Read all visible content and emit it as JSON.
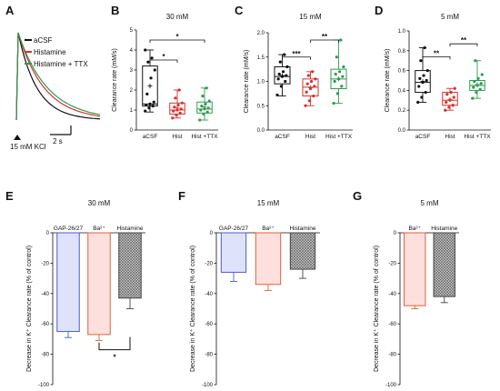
{
  "chart_data": [
    {
      "panel": "A",
      "type": "line",
      "legend": [
        {
          "name": "aCSF",
          "color": "#111111"
        },
        {
          "name": "Histamine",
          "color": "#d9302c"
        },
        {
          "name": "Histamine + TTX",
          "color": "#2e9b4e"
        }
      ],
      "stimulus_label": "15 mM KCl",
      "scalebar_label": "2 s",
      "series": [
        {
          "name": "aCSF",
          "color": "#111111",
          "tau": 1.15
        },
        {
          "name": "Histamine",
          "color": "#d9302c",
          "tau": 1.6
        },
        {
          "name": "Histamine + TTX",
          "color": "#2e9b4e",
          "tau": 1.8
        }
      ]
    },
    {
      "panel": "B",
      "type": "box",
      "title": "30 mM",
      "ylabel": "Clearance rate (mM/s)",
      "ylim": [
        0,
        5
      ],
      "yticks": [
        "0",
        "1",
        "2",
        "3",
        "4",
        "5"
      ],
      "categories": [
        "aCSF",
        "Hist",
        "Hist +TTX"
      ],
      "colors": [
        "#111111",
        "#d9302c",
        "#2e9b4e"
      ],
      "boxes": [
        {
          "min": 0.9,
          "q1": 1.2,
          "median": 1.3,
          "q3": 3.2,
          "max": 4.0,
          "mean": 2.2,
          "points": [
            0.95,
            1.1,
            1.2,
            1.25,
            1.3,
            1.4,
            1.8,
            2.6,
            3.0,
            3.4,
            3.6,
            4.0
          ]
        },
        {
          "min": 0.6,
          "q1": 0.8,
          "median": 1.0,
          "q3": 1.35,
          "max": 2.0,
          "mean": 1.1,
          "points": [
            0.6,
            0.75,
            0.85,
            0.95,
            1.0,
            1.05,
            1.15,
            1.25,
            1.35,
            1.6,
            2.0
          ]
        },
        {
          "min": 0.5,
          "q1": 0.85,
          "median": 1.05,
          "q3": 1.4,
          "max": 2.1,
          "mean": 1.15,
          "points": [
            0.5,
            0.8,
            0.9,
            1.0,
            1.05,
            1.1,
            1.2,
            1.3,
            1.45,
            1.7,
            2.1
          ]
        }
      ],
      "significance": [
        {
          "from": 0,
          "to": 1,
          "label": "*",
          "y": 3.5
        },
        {
          "from": 0,
          "to": 2,
          "label": "*",
          "y": 4.5
        }
      ]
    },
    {
      "panel": "C",
      "type": "box",
      "title": "15 mM",
      "ylabel": "Clearance rate (mM/s)",
      "ylim": [
        0,
        2.0
      ],
      "yticks": [
        "0.0",
        "0.5",
        "1.0",
        "1.5",
        "2.0"
      ],
      "categories": [
        "aCSF",
        "Hist",
        "Hist +TTX"
      ],
      "colors": [
        "#111111",
        "#d9302c",
        "#2e9b4e"
      ],
      "boxes": [
        {
          "min": 0.7,
          "q1": 0.95,
          "median": 1.1,
          "q3": 1.3,
          "max": 1.55,
          "mean": 1.12,
          "points": [
            0.72,
            0.9,
            1.0,
            1.05,
            1.1,
            1.12,
            1.15,
            1.2,
            1.3,
            1.4,
            1.55
          ]
        },
        {
          "min": 0.5,
          "q1": 0.7,
          "median": 0.88,
          "q3": 1.05,
          "max": 1.2,
          "mean": 0.87,
          "points": [
            0.5,
            0.6,
            0.7,
            0.78,
            0.85,
            0.9,
            0.95,
            1.0,
            1.05,
            1.12,
            1.2
          ]
        },
        {
          "min": 0.55,
          "q1": 0.85,
          "median": 1.05,
          "q3": 1.25,
          "max": 1.85,
          "mean": 1.05,
          "points": [
            0.55,
            0.75,
            0.9,
            1.0,
            1.05,
            1.1,
            1.15,
            1.2,
            1.3,
            1.5,
            1.85
          ]
        }
      ],
      "significance": [
        {
          "from": 0,
          "to": 1,
          "label": "***",
          "y": 1.5
        },
        {
          "from": 1,
          "to": 2,
          "label": "**",
          "y": 1.85
        }
      ]
    },
    {
      "panel": "D",
      "type": "box",
      "title": "5 mM",
      "ylabel": "Clearance rate (mM/s)",
      "ylim": [
        0,
        1.0
      ],
      "yticks": [
        "0.0",
        "0.2",
        "0.4",
        "0.6",
        "0.8",
        "1.0"
      ],
      "categories": [
        "aCSF",
        "Hist",
        "Hist +TTX"
      ],
      "colors": [
        "#111111",
        "#d9302c",
        "#2e9b4e"
      ],
      "boxes": [
        {
          "min": 0.28,
          "q1": 0.38,
          "median": 0.48,
          "q3": 0.6,
          "max": 0.83,
          "mean": 0.49,
          "points": [
            0.28,
            0.33,
            0.38,
            0.44,
            0.48,
            0.5,
            0.52,
            0.55,
            0.6,
            0.7,
            0.83
          ]
        },
        {
          "min": 0.2,
          "q1": 0.25,
          "median": 0.3,
          "q3": 0.38,
          "max": 0.42,
          "mean": 0.31,
          "points": [
            0.2,
            0.23,
            0.25,
            0.28,
            0.3,
            0.33,
            0.36,
            0.38,
            0.42
          ]
        },
        {
          "min": 0.32,
          "q1": 0.4,
          "median": 0.45,
          "q3": 0.5,
          "max": 0.7,
          "mean": 0.46,
          "points": [
            0.32,
            0.38,
            0.41,
            0.43,
            0.45,
            0.47,
            0.49,
            0.52,
            0.56,
            0.7
          ]
        }
      ],
      "significance": [
        {
          "from": 0,
          "to": 1,
          "label": "**",
          "y": 0.74
        },
        {
          "from": 1,
          "to": 2,
          "label": "**",
          "y": 0.87
        }
      ]
    },
    {
      "panel": "E",
      "type": "bar",
      "title": "30 mM",
      "ylabel": "Decrease in K⁺ Clearance rate (% of control)",
      "ylim": [
        -100,
        0
      ],
      "yticks": [
        "0",
        "-20",
        "-40",
        "-60",
        "-80",
        "-100"
      ],
      "categories": [
        "GAP-26/27",
        "Ba²⁺",
        "Histamine"
      ],
      "values": [
        -65,
        -67,
        -43
      ],
      "errors": [
        4,
        4,
        7
      ],
      "styles": [
        {
          "stroke": "#4c5bd4",
          "fill": "#dfe2fb",
          "pattern": "none"
        },
        {
          "stroke": "#e0603a",
          "fill": "#fde0de",
          "pattern": "none"
        },
        {
          "stroke": "#444444",
          "fill": "#bbbbbb",
          "pattern": "hatch"
        }
      ],
      "significance": [
        {
          "from": 1,
          "to": 2,
          "label": "*",
          "y": -77
        }
      ]
    },
    {
      "panel": "F",
      "type": "bar",
      "title": "15 mM",
      "ylabel": "Decrease in K⁺ Clearance rate (% of control)",
      "ylim": [
        -100,
        0
      ],
      "yticks": [
        "0",
        "-20",
        "-40",
        "-60",
        "-80",
        "-100"
      ],
      "categories": [
        "GAP-26/27",
        "Ba²⁺",
        "Histamine"
      ],
      "values": [
        -26,
        -34,
        -24
      ],
      "errors": [
        6,
        4,
        6
      ],
      "styles": [
        {
          "stroke": "#4c5bd4",
          "fill": "#dfe2fb",
          "pattern": "none"
        },
        {
          "stroke": "#e0603a",
          "fill": "#fde0de",
          "pattern": "none"
        },
        {
          "stroke": "#444444",
          "fill": "#bbbbbb",
          "pattern": "hatch"
        }
      ],
      "significance": []
    },
    {
      "panel": "G",
      "type": "bar",
      "title": "5 mM",
      "ylabel": "Decrease in K⁺ Clearance rate (% of control)",
      "ylim": [
        -100,
        0
      ],
      "yticks": [
        "0",
        "-20",
        "-40",
        "-60",
        "-80",
        "-100"
      ],
      "categories": [
        "Ba²⁺",
        "Histamine"
      ],
      "values": [
        -48,
        -42
      ],
      "errors": [
        2,
        4
      ],
      "styles": [
        {
          "stroke": "#e0603a",
          "fill": "#fde0de",
          "pattern": "none"
        },
        {
          "stroke": "#444444",
          "fill": "#bbbbbb",
          "pattern": "hatch"
        }
      ],
      "significance": []
    }
  ]
}
